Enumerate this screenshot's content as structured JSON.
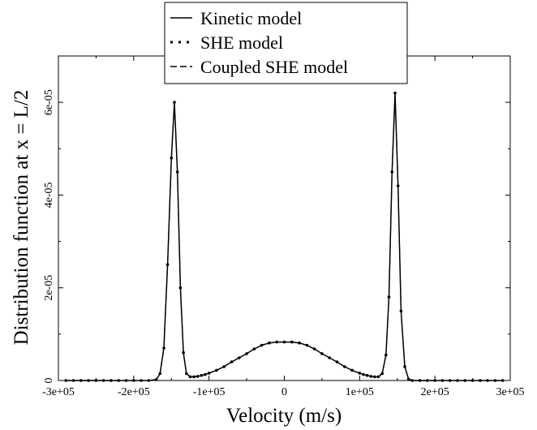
{
  "chart_data": {
    "type": "line",
    "xlabel": "Velocity (m/s)",
    "ylabel": "Distribution function at x = L/2",
    "xlim": [
      -300000,
      300000
    ],
    "ylim": [
      0,
      7e-05
    ],
    "x_ticks": [
      -300000,
      -200000,
      -100000,
      0,
      100000,
      200000,
      300000
    ],
    "x_tick_labels": [
      "-3e+05",
      "-2e+05",
      "-1e+05",
      "0",
      "1e+05",
      "2e+05",
      "3e+05"
    ],
    "y_ticks": [
      0,
      2e-05,
      4e-05,
      6e-05
    ],
    "y_tick_labels": [
      "0",
      "2e-05",
      "4e-05",
      "6e-05"
    ],
    "grid": false,
    "legend_position": "top-center",
    "series": [
      {
        "name": "Kinetic model",
        "style": "solid"
      },
      {
        "name": "SHE model",
        "style": "dotted"
      },
      {
        "name": "Coupled SHE model",
        "style": "dashed"
      }
    ],
    "x": [
      -290000,
      -280000,
      -270000,
      -260000,
      -250000,
      -240000,
      -230000,
      -220000,
      -210000,
      -200000,
      -190000,
      -180000,
      -170000,
      -165000,
      -160000,
      -155000,
      -150000,
      -146000,
      -142000,
      -138000,
      -134000,
      -130000,
      -125000,
      -120000,
      -115000,
      -110000,
      -105000,
      -100000,
      -90000,
      -80000,
      -70000,
      -60000,
      -50000,
      -40000,
      -30000,
      -20000,
      -10000,
      0,
      10000,
      20000,
      30000,
      40000,
      50000,
      60000,
      70000,
      80000,
      90000,
      100000,
      105000,
      110000,
      115000,
      120000,
      125000,
      130000,
      135000,
      139000,
      143000,
      147000,
      151000,
      155000,
      160000,
      165000,
      170000,
      180000,
      190000,
      200000,
      210000,
      220000,
      230000,
      240000,
      250000,
      260000,
      270000,
      280000,
      290000
    ],
    "values": [
      0,
      0,
      0,
      0,
      0,
      0,
      0,
      0,
      0,
      0,
      0,
      0,
      2e-07,
      1.5e-06,
      7e-06,
      2.5e-05,
      4.8e-05,
      6e-05,
      4.5e-05,
      2e-05,
      6e-06,
      1.5e-06,
      8e-07,
      8e-07,
      9e-07,
      1.1e-06,
      1.3e-06,
      1.6e-06,
      2.2e-06,
      3e-06,
      4e-06,
      4.9e-06,
      5.8e-06,
      6.8e-06,
      7.6e-06,
      8.1e-06,
      8.3e-06,
      8.3e-06,
      8.3e-06,
      8.1e-06,
      7.6e-06,
      6.8e-06,
      5.8e-06,
      4.9e-06,
      4e-06,
      3e-06,
      2.2e-06,
      1.6e-06,
      1.3e-06,
      1.1e-06,
      9e-07,
      8e-07,
      8e-07,
      1.5e-06,
      5.5e-06,
      1.8e-05,
      4.5e-05,
      6.2e-05,
      4.2e-05,
      1.5e-05,
      3e-06,
      3e-07,
      0,
      0,
      0,
      0,
      0,
      0,
      0,
      0,
      0,
      0,
      0,
      0,
      0
    ]
  }
}
